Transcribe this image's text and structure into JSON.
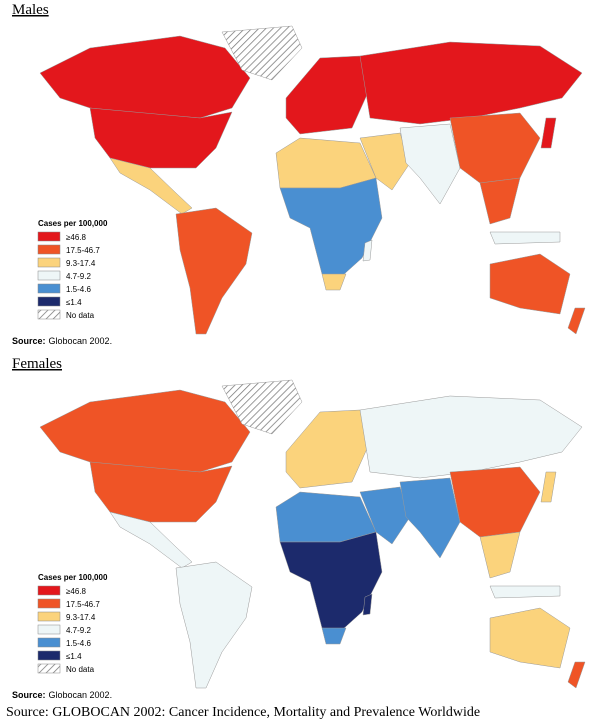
{
  "panels": [
    {
      "title": "Males",
      "legend": {
        "title": "Cases per 100,000",
        "items": [
          {
            "label": "≥46.8",
            "color": "#e3171c"
          },
          {
            "label": "17.5-46.7",
            "color": "#ef5426"
          },
          {
            "label": "9.3-17.4",
            "color": "#fbd37c"
          },
          {
            "label": "4.7-9.2",
            "color": "#eef6f7"
          },
          {
            "label": "1.5-4.6",
            "color": "#4a8fd1"
          },
          {
            "label": "≤1.4",
            "color": "#1c2a6c"
          },
          {
            "label": "No data"
          }
        ]
      },
      "source": {
        "label": "Source:",
        "text": "Globocan 2002."
      }
    },
    {
      "title": "Females",
      "legend": {
        "title": "Cases per 100,000",
        "items": [
          {
            "label": "≥46.8",
            "color": "#e3171c"
          },
          {
            "label": "17.5-46.7",
            "color": "#ef5426"
          },
          {
            "label": "9.3-17.4",
            "color": "#fbd37c"
          },
          {
            "label": "4.7-9.2",
            "color": "#eef6f7"
          },
          {
            "label": "1.5-4.6",
            "color": "#4a8fd1"
          },
          {
            "label": "≤1.4",
            "color": "#1c2a6c"
          },
          {
            "label": "No data"
          }
        ]
      },
      "source": {
        "label": "Source:",
        "text": "Globocan 2002."
      }
    }
  ],
  "caption": "Source: GLOBOCAN 2002: Cancer Incidence, Mortality and Prevalence Worldwide"
}
